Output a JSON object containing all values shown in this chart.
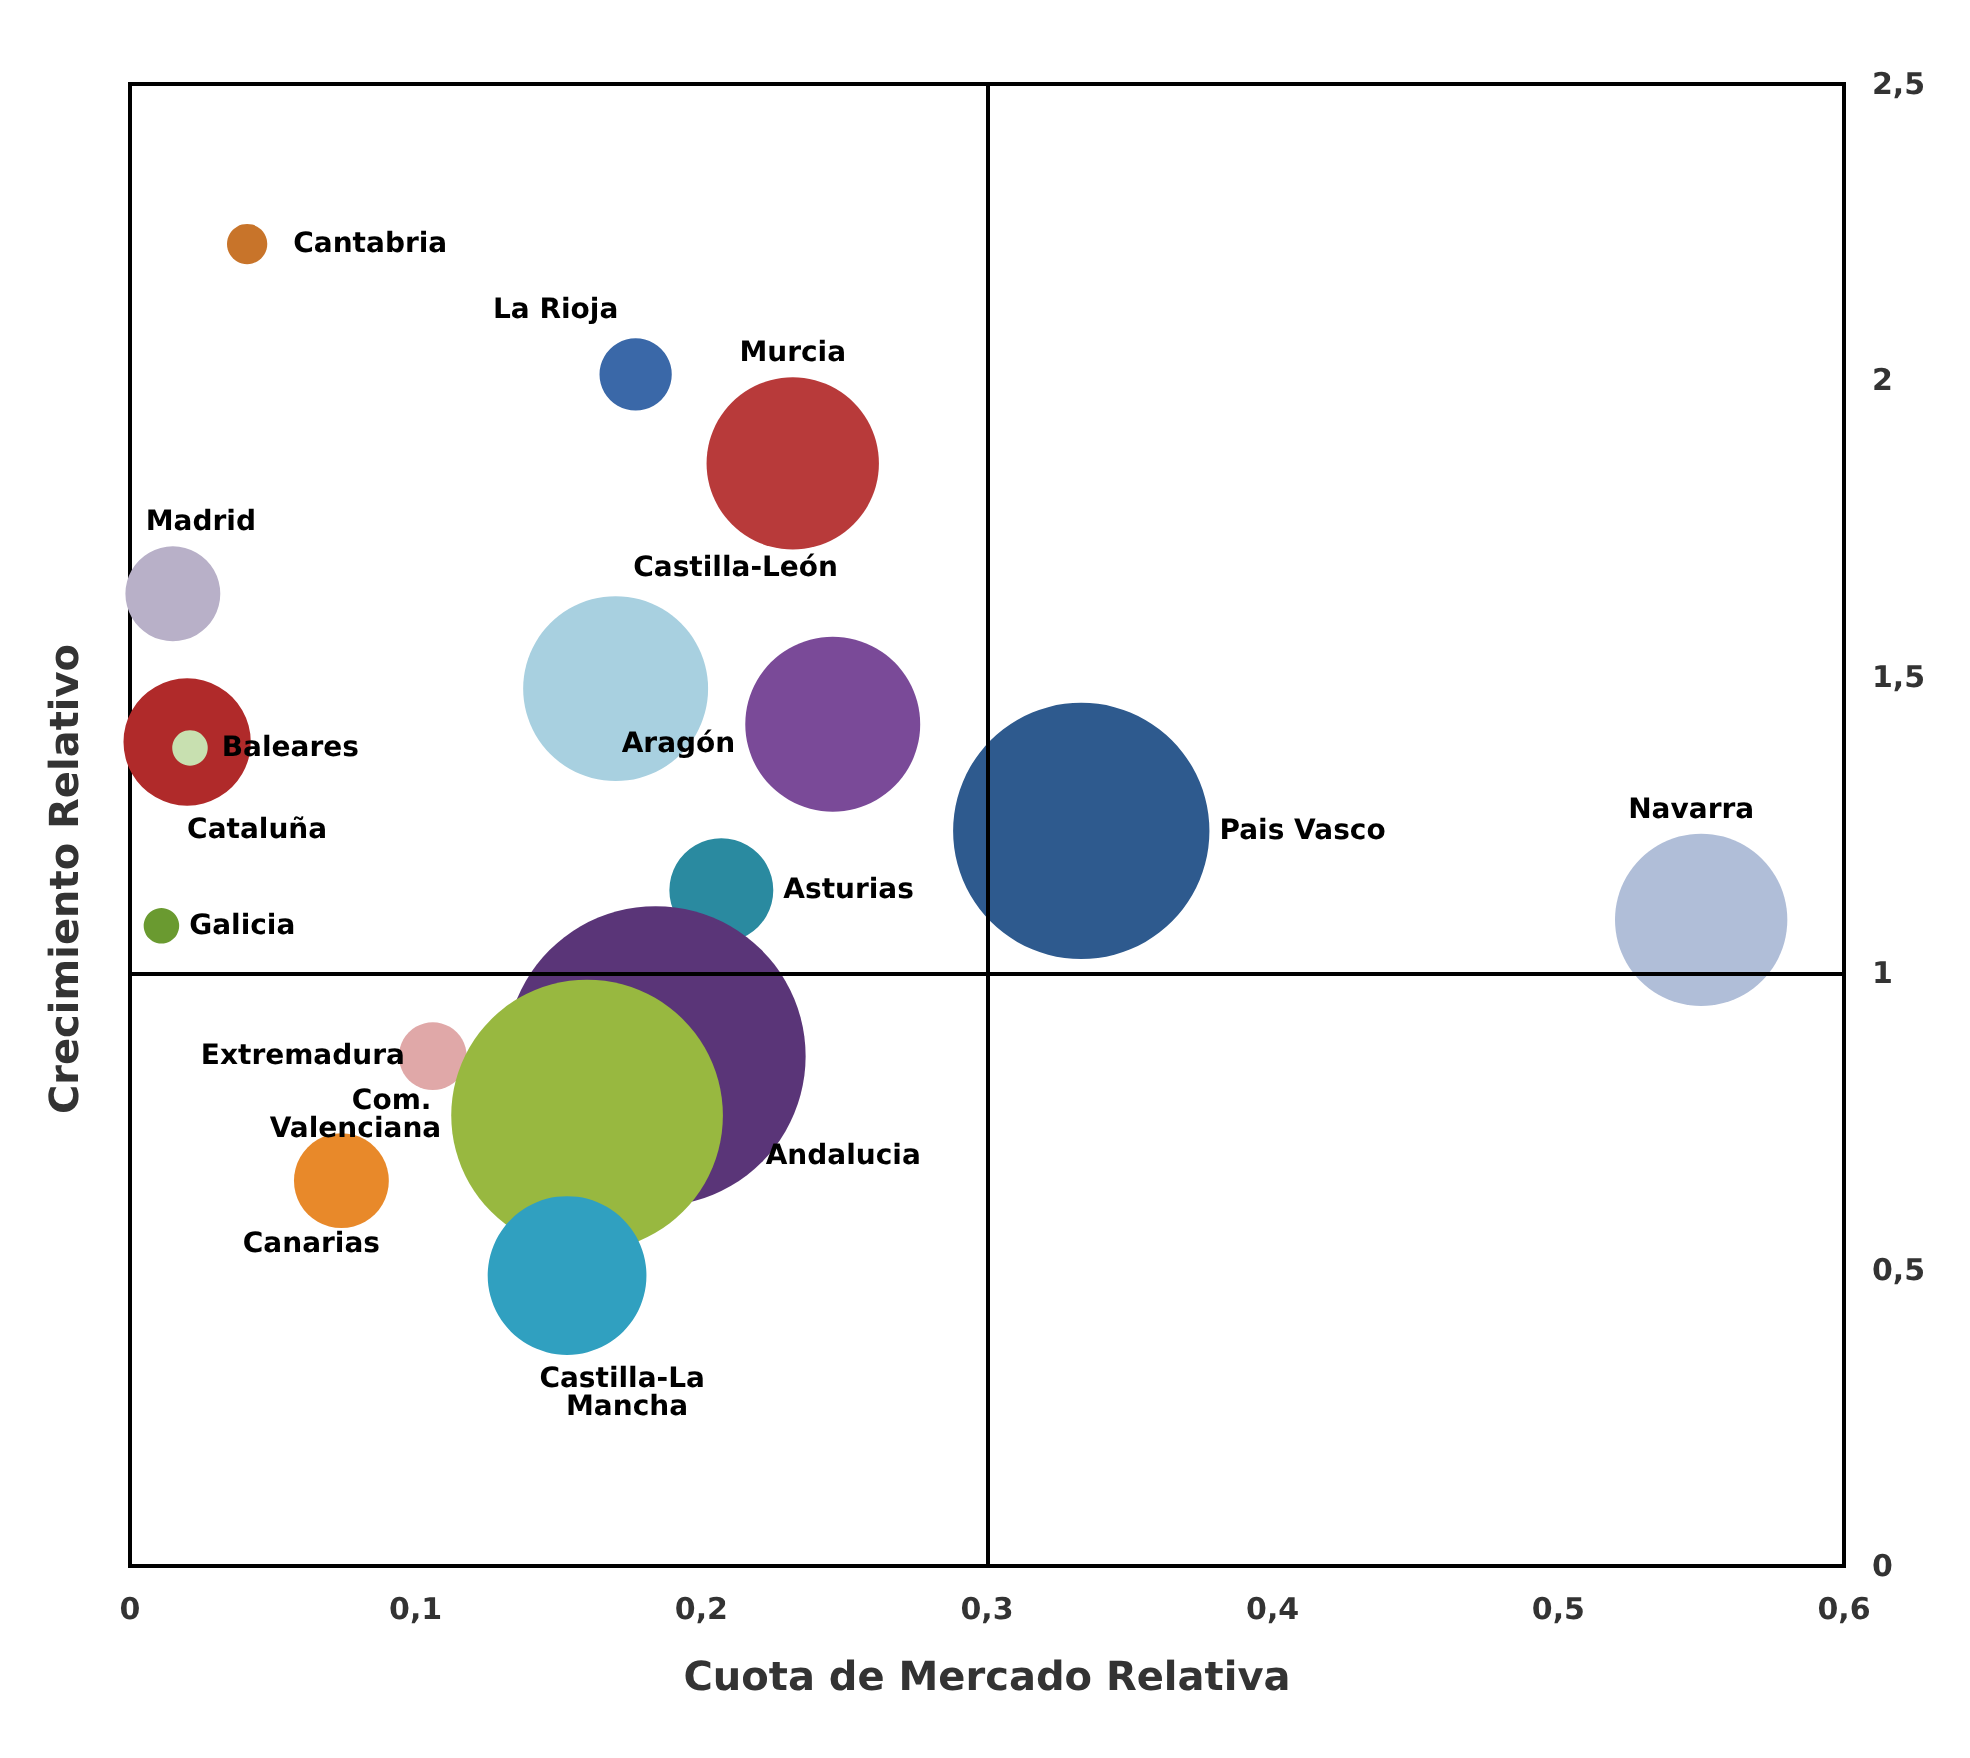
{
  "chart_data": {
    "type": "bubble",
    "xlabel": "Cuota de Mercado Relativa",
    "ylabel": "Crecimiento Relativo",
    "xlim": [
      0,
      0.6
    ],
    "ylim": [
      0,
      2.5
    ],
    "xticks": [
      0,
      {
        "value": 0.1,
        "label": "0,1"
      },
      {
        "value": 0.2,
        "label": "0,2"
      },
      {
        "value": 0.3,
        "label": "0,3"
      },
      {
        "value": 0.4,
        "label": "0,4"
      },
      {
        "value": 0.5,
        "label": "0,5"
      },
      {
        "value": 0.6,
        "label": "0,6"
      }
    ],
    "yticks": [
      0,
      {
        "value": 0.5,
        "label": "0,5"
      },
      1,
      {
        "value": 1.5,
        "label": "1,5"
      },
      2,
      {
        "value": 2.5,
        "label": "2,5"
      }
    ],
    "grid": false,
    "legend": false,
    "marker": "circle",
    "ref_lines": [
      {
        "axis": "x",
        "value": 0.3,
        "color": "#000000"
      },
      {
        "axis": "y",
        "value": 1,
        "color": "#000000"
      }
    ],
    "series": [
      {
        "name": "Cantabria",
        "color": "#c8742a",
        "x": [
          0.041
        ],
        "values": [
          2.23
        ],
        "sizes": [
          0.018
        ]
      },
      {
        "name": "La Rioja",
        "color": "#3a68a8",
        "x": [
          0.177
        ],
        "values": [
          2.01
        ],
        "sizes": [
          0.058
        ]
      },
      {
        "name": "Murcia",
        "color": "#b83a3a",
        "x": [
          0.232
        ],
        "values": [
          1.86
        ],
        "sizes": [
          0.33
        ]
      },
      {
        "name": "Madrid",
        "color": "#b8b0c8",
        "x": [
          0.015
        ],
        "values": [
          1.64
        ],
        "sizes": [
          0.1
        ]
      },
      {
        "name": "Castilla-León",
        "color": "#a8d0e0",
        "x": [
          0.17
        ],
        "values": [
          1.48
        ],
        "sizes": [
          0.38
        ]
      },
      {
        "name": "Aragón",
        "color": "#7a4a98",
        "x": [
          0.246
        ],
        "values": [
          1.42
        ],
        "sizes": [
          0.34
        ]
      },
      {
        "name": "Cataluña",
        "color": "#b02a2a",
        "x": [
          0.02
        ],
        "values": [
          1.39
        ],
        "sizes": [
          0.18
        ]
      },
      {
        "name": "Baleares",
        "color": "#c8e0b0",
        "x": [
          0.021
        ],
        "values": [
          1.38
        ],
        "sizes": [
          0.014
        ]
      },
      {
        "name": "Pais Vasco",
        "color": "#2e5a8e",
        "x": [
          0.333
        ],
        "values": [
          1.24
        ],
        "sizes": [
          0.73
        ]
      },
      {
        "name": "Navarra",
        "color": "#b0bed8",
        "x": [
          0.55
        ],
        "values": [
          1.09
        ],
        "sizes": [
          0.33
        ]
      },
      {
        "name": "Asturias",
        "color": "#2a8aa0",
        "x": [
          0.207
        ],
        "values": [
          1.14
        ],
        "sizes": [
          0.12
        ]
      },
      {
        "name": "Galicia",
        "color": "#6a9a30",
        "x": [
          0.011
        ],
        "values": [
          1.08
        ],
        "sizes": [
          0.014
        ]
      },
      {
        "name": "Andalucia",
        "color": "#5a3578",
        "x": [
          0.184
        ],
        "values": [
          0.86
        ],
        "sizes": [
          1
        ]
      },
      {
        "name": "Extremadura",
        "color": "#e0a8a8",
        "x": [
          0.106
        ],
        "values": [
          0.86
        ],
        "sizes": [
          0.051
        ]
      },
      {
        "name": "Com. Valenciana",
        "color": "#98b840",
        "x": [
          0.16
        ],
        "values": [
          0.76
        ],
        "sizes": [
          0.82
        ]
      },
      {
        "name": "Canarias",
        "color": "#e8892a",
        "x": [
          0.074
        ],
        "values": [
          0.65
        ],
        "sizes": [
          0.1
        ]
      },
      {
        "name": "Castilla-La Mancha",
        "color": "#30a0c0",
        "x": [
          0.153
        ],
        "values": [
          0.49
        ],
        "sizes": [
          0.28
        ]
      }
    ]
  }
}
